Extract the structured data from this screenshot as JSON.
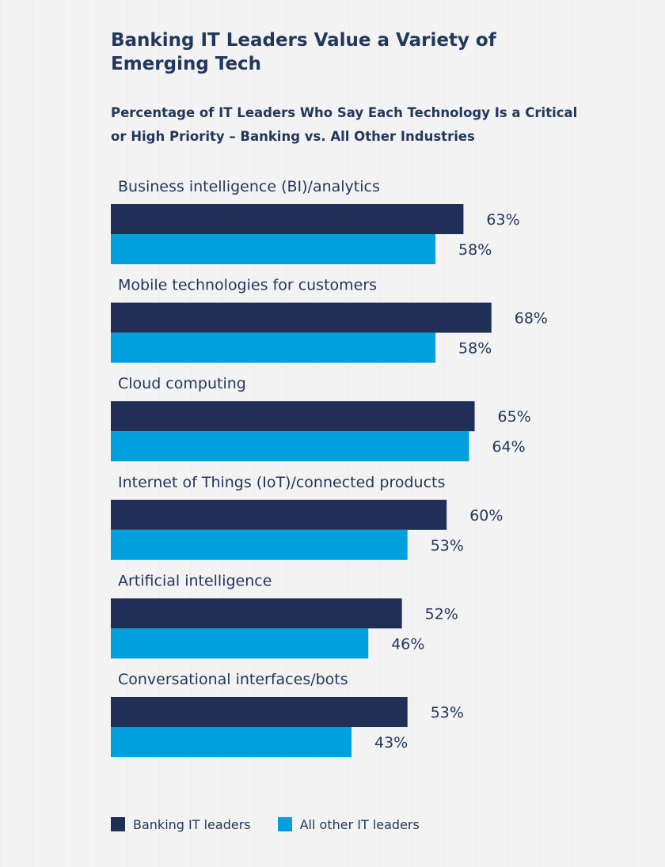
{
  "title": "Banking IT Leaders Value a Variety of Emerging Tech",
  "subtitle": "Percentage of IT Leaders Who Say Each Technology Is a Critical or High Priority – Banking vs. All Other Industries",
  "colors": {
    "banking": "#1f2f55",
    "other": "#00a0dc",
    "text": "#22375c"
  },
  "chart_data": {
    "type": "bar",
    "orientation": "horizontal",
    "categories": [
      "Business intelligence (BI)/analytics",
      "Mobile technologies for customers",
      "Cloud computing",
      "Internet of Things (IoT)/connected products",
      "Artificial intelligence",
      "Conversational interfaces/bots"
    ],
    "series": [
      {
        "name": "Banking IT leaders",
        "values": [
          63,
          68,
          65,
          60,
          52,
          53
        ],
        "labels": [
          "63%",
          "68%",
          "65%",
          "60%",
          "52%",
          "53%"
        ]
      },
      {
        "name": "All other IT leaders",
        "values": [
          58,
          58,
          64,
          53,
          46,
          43
        ],
        "labels": [
          "58%",
          "58%",
          "64%",
          "53%",
          "46%",
          "43%"
        ]
      }
    ],
    "legend_position": "bottom-left",
    "grid": false
  }
}
